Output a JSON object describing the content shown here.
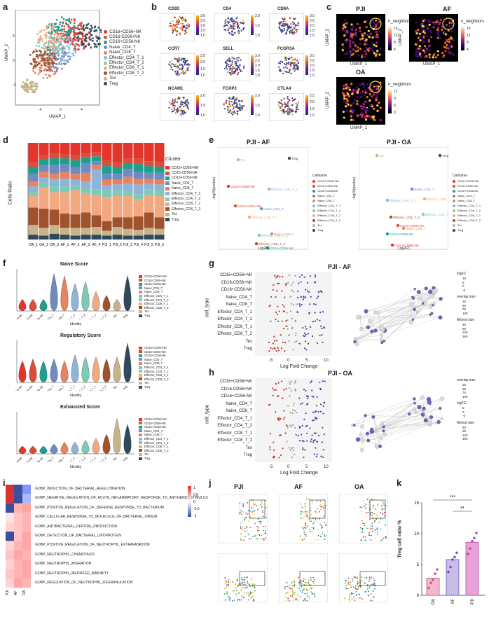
{
  "panel_labels": [
    "a",
    "b",
    "c",
    "d",
    "e",
    "f",
    "g",
    "h",
    "i",
    "j",
    "k"
  ],
  "clusters": [
    "CD16+CD56+NK",
    "CD16-CD56+NK",
    "CD16+CD56-NK",
    "Naive_CD4_T",
    "Naive_CD8_T",
    "Effector_CD4_T_1",
    "Effector_CD4_T_2",
    "Effector_CD8_T_1",
    "Effector_CD8_T_2",
    "Tex",
    "Treg"
  ],
  "cluster_colors": [
    "#e2362d",
    "#d94f3c",
    "#1f9e8e",
    "#6f8bbf",
    "#e68462",
    "#8fb4d9",
    "#7dcab8",
    "#f2a97f",
    "#a0522d",
    "#c8b38a",
    "#2e4a5c"
  ],
  "a": {
    "xlabel": "UMAP_1",
    "ylabel": "UMAP_2",
    "ticks_x": [
      "-4",
      "0",
      "4"
    ],
    "ticks_y": [
      "4",
      "0",
      "-4"
    ],
    "legend": [
      "CD16+CD56+NK",
      "CD16-CD56+NK",
      "CD16+CD56-NK",
      "Naive_CD4_T",
      "Naive_CD8_T",
      "Effector_CD4_T_1",
      "Effector_CD4_T_2",
      "Effector_CD8_T_1",
      "Effector_CD8_T_2",
      "Tex",
      "Treg"
    ]
  },
  "b": {
    "genes": [
      "CD3D",
      "CD4",
      "CD8A",
      "CCR7",
      "SELL",
      "FCGR3A",
      "NCAM1",
      "FOXP3",
      "CTLA4"
    ],
    "scales": [
      [
        "3.0",
        "2.5",
        "2.0",
        "1.5",
        "1.0"
      ],
      [
        "2.0",
        "1.5",
        "1.0"
      ],
      [
        "3.0",
        "2.5",
        "2.0",
        "1.5",
        "1.0"
      ],
      [
        "2.5",
        "2.0",
        "1.5",
        "1.0"
      ],
      [
        "3.0",
        "2.5",
        "2.0",
        "1.5",
        "1.0"
      ],
      [
        "3.0",
        "2.5",
        "2.0",
        "1.5",
        "1.0"
      ],
      [
        "2.0",
        "1.5",
        "1.0"
      ],
      [
        "2.0",
        "1.5",
        "1.0"
      ],
      [
        "2.5",
        "2.0",
        "1.5",
        "1.0"
      ]
    ]
  },
  "c": {
    "maps": [
      {
        "title": "PJI",
        "legend_title": "n_neighbors",
        "scale": [
          "16",
          "12",
          "8",
          "4"
        ]
      },
      {
        "title": "AF",
        "legend_title": "n_neighbors",
        "scale": [
          "16",
          "12",
          "8",
          "4"
        ]
      },
      {
        "title": "OA",
        "legend_title": "n_neighbors",
        "scale": [
          "12",
          "9",
          "6",
          "3"
        ]
      }
    ],
    "xlabel": "UMAP_1",
    "ylabel": "UMAP_2"
  },
  "d": {
    "ylabel": "Cells Ratio",
    "legend_title": "Cluster"
  },
  "e": {
    "plots": [
      {
        "title": "PJI - AF",
        "xlabel": "Log2FC",
        "ylabel": "-log10(pvalue)",
        "legend_title": "Cellname",
        "points": [
          "Tex",
          "Treg",
          "CD16+CD56+NK",
          "Effector_CD4_T_1",
          "CD16-CD56+NK",
          "Naive_CD4_T",
          "Effector_CD8_T_1",
          "Naive_CD8_T",
          "Effector_CD4_T_2",
          "Effector_CD8_T_2",
          "CD16+CD56-NK"
        ]
      },
      {
        "title": "PJI - OA",
        "xlabel": "Log2FC",
        "ylabel": "-log10(pvalue)",
        "legend_title": "Cellname",
        "points": [
          "Tex",
          "Treg",
          "Naive_CD4_T",
          "Effector_CD4_T_1",
          "Effector_CD8_T_1",
          "Effector_CD4_T_2",
          "Effector_CD8_T_2",
          "CD16+CD56-NK",
          "Naive_CD8_T",
          "CD16-CD56+NK",
          "CD16+CD56+NK"
        ]
      }
    ]
  },
  "f": {
    "titles": [
      "Naive Score",
      "Regulatory Score",
      "Exhausted Score"
    ],
    "xlabel": "Identity"
  },
  "g": {
    "title": "PJI - AF",
    "xlabel": "Log Fold Change",
    "ylabel": "cell_type",
    "ticks": [
      "-5",
      "0",
      "5",
      "10"
    ],
    "legend": {
      "logfc": "logFC",
      "logfc_ticks": [
        "10",
        "5",
        "0",
        "-5"
      ],
      "overlap": "overlap size",
      "overlap_vals": [
        "25",
        "50",
        "75",
        "100"
      ],
      "nhood": "Nhood size",
      "nhood_vals": [
        "40",
        "80",
        "120",
        "160"
      ]
    }
  },
  "h": {
    "title": "PJI - OA",
    "xlabel": "Log Fold Change",
    "ylabel": "cell_type",
    "ticks": [
      "-5",
      "0",
      "5",
      "10"
    ],
    "legend": {
      "overlap": "overlap size",
      "overlap_vals": [
        "25",
        "50",
        "75",
        "100"
      ],
      "logfc": "logFC",
      "logfc_ticks": [
        "5",
        "0",
        "-5"
      ],
      "nhood": "Nhood size",
      "nhood_vals": [
        "40",
        "80",
        "120",
        "160"
      ]
    }
  },
  "i": {
    "terms": [
      "GOBP_INDUCTION_OF_BACTERIAL_AGGLUTINATION",
      "GOBP_NEGATIVE_REGULATION_OF_ACUTE_INFLAMMATORY_RESPONSE_TO_ANTIGENIC_STIMULUS",
      "GOBP_POSITIVE_REGULATION_OF_DEFENSE_RESPONSE_TO_BACTERIUM",
      "GOBP_CELLULAR_RESPONSE_TO_MOLECULE_OF_BACTERIAL_ORIGIN",
      "GOBP_ANTIBACTERIAL_PEPTIDE_PRODUCTION",
      "GOBP_DETECTION_OF_BACTERIAL_LIPOPROTEIN",
      "GOBP_POSITIVE_REGULATION_OF_NEUTROPHIL_EXTRAVASATION",
      "GOBP_NEUTROPHIL_CHEMOTAXIS",
      "GOBP_NEUTROPHIL_MIGRATION",
      "GOBP_NEUTROPHIL_MEDIATED_IMMUNITY",
      "GOBP_REGULATION_OF_NEUTROPHIL_DEGRANULATION"
    ],
    "columns": [
      "PJI",
      "AF",
      "OA"
    ],
    "scale": [
      "1",
      "0.5",
      "0",
      "-0.5",
      "-1"
    ]
  },
  "j": {
    "columns": [
      "PJI",
      "AF",
      "OA"
    ]
  },
  "chart_data": [
    {
      "type": "bar",
      "stacked": true,
      "panel": "d",
      "ylabel": "Cells Ratio",
      "xlabel": "",
      "categories": [
        "OA_1",
        "OA_2",
        "OA_3",
        "AF_1",
        "AF_2",
        "AF_3",
        "AF_4",
        "PJI_1",
        "PJI_2",
        "PJI_3",
        "PJI_4",
        "PJI_5",
        "PJI_6"
      ],
      "series": [
        {
          "name": "Treg",
          "values": [
            0.05,
            0.04,
            0.06,
            0.05,
            0.04,
            0.05,
            0.05,
            0.04,
            0.05,
            0.04,
            0.04,
            0.05,
            0.05
          ]
        },
        {
          "name": "Tex",
          "values": [
            0.1,
            0.08,
            0.09,
            0.07,
            0.08,
            0.07,
            0.08,
            0.05,
            0.08,
            0.07,
            0.06,
            0.07,
            0.06
          ]
        },
        {
          "name": "Effector_CD8_T_2",
          "values": [
            0.18,
            0.2,
            0.16,
            0.15,
            0.14,
            0.16,
            0.12,
            0.1,
            0.1,
            0.12,
            0.14,
            0.16,
            0.12
          ]
        },
        {
          "name": "Effector_CD8_T_1",
          "values": [
            0.12,
            0.22,
            0.18,
            0.22,
            0.25,
            0.2,
            0.21,
            0.25,
            0.22,
            0.22,
            0.18,
            0.18,
            0.22
          ]
        },
        {
          "name": "Effector_CD4_T_2",
          "values": [
            0.04,
            0.05,
            0.06,
            0.06,
            0.05,
            0.05,
            0.06,
            0.07,
            0.06,
            0.05,
            0.05,
            0.06,
            0.06
          ]
        },
        {
          "name": "Effector_CD4_T_1",
          "values": [
            0.06,
            0.05,
            0.08,
            0.08,
            0.06,
            0.07,
            0.2,
            0.05,
            0.06,
            0.08,
            0.1,
            0.06,
            0.06
          ]
        },
        {
          "name": "Naive_CD8_T",
          "values": [
            0.05,
            0.06,
            0.05,
            0.07,
            0.06,
            0.09,
            0.05,
            0.06,
            0.05,
            0.07,
            0.06,
            0.05,
            0.05
          ]
        },
        {
          "name": "Naive_CD4_T",
          "values": [
            0.08,
            0.07,
            0.09,
            0.08,
            0.07,
            0.1,
            0.04,
            0.06,
            0.06,
            0.08,
            0.07,
            0.06,
            0.07
          ]
        },
        {
          "name": "CD16+CD56-NK",
          "values": [
            0.07,
            0.06,
            0.07,
            0.06,
            0.07,
            0.06,
            0.05,
            0.08,
            0.07,
            0.06,
            0.08,
            0.07,
            0.06
          ]
        },
        {
          "name": "CD16-CD56+NK",
          "values": [
            0.05,
            0.04,
            0.05,
            0.04,
            0.05,
            0.04,
            0.04,
            0.06,
            0.05,
            0.05,
            0.06,
            0.05,
            0.05
          ]
        },
        {
          "name": "CD16+CD56+NK",
          "values": [
            0.2,
            0.13,
            0.11,
            0.12,
            0.13,
            0.11,
            0.1,
            0.18,
            0.2,
            0.16,
            0.16,
            0.19,
            0.2
          ]
        }
      ],
      "ylim": [
        0,
        1
      ]
    },
    {
      "type": "bar",
      "panel": "k",
      "ylabel": "Treg cell ratio %",
      "categories": [
        "OA",
        "AF",
        "PJI"
      ],
      "values": [
        2.8,
        5.8,
        8.6
      ],
      "points": [
        [
          1.2,
          2.0,
          2.5,
          3.5,
          4.2
        ],
        [
          3.8,
          4.6,
          5.8,
          6.2,
          6.9
        ],
        [
          6.7,
          7.6,
          8.8,
          9.3,
          10.1
        ]
      ],
      "yticks": [
        "0",
        "5",
        "10",
        "15"
      ],
      "ylim": [
        0,
        15
      ],
      "significance": [
        "***",
        "**"
      ]
    }
  ]
}
